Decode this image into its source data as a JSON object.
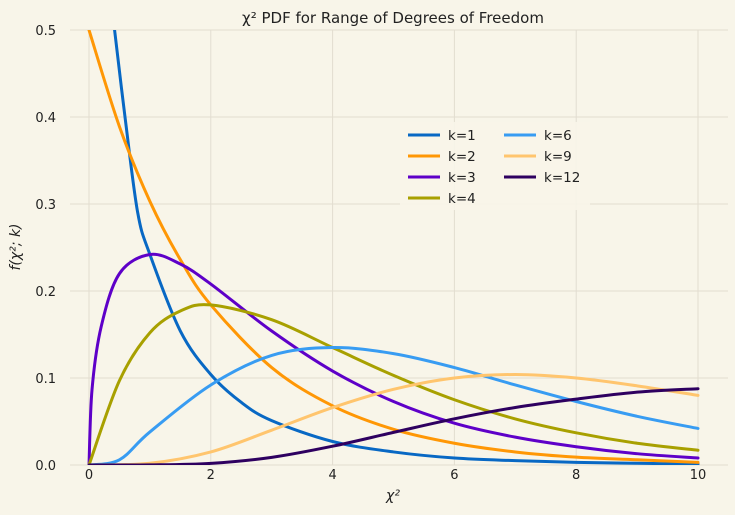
{
  "chart_data": {
    "type": "line",
    "title": "χ² PDF for Range of Degrees of Freedom",
    "xlabel": "χ²",
    "ylabel": "f(χ²; k)",
    "xlim": [
      0,
      10
    ],
    "ylim": [
      0,
      0.5
    ],
    "xticks": [
      "0",
      "2",
      "4",
      "6",
      "8",
      "10"
    ],
    "yticks": [
      "0.0",
      "0.1",
      "0.2",
      "0.3",
      "0.4",
      "0.5"
    ],
    "grid": true,
    "legend_placement": "upper-right (two columns)",
    "series": [
      {
        "name": "k=1",
        "color": "#0868c4",
        "x": [
          0.42,
          0.6,
          0.8,
          1,
          1.5,
          2,
          2.5,
          3,
          4,
          5,
          6,
          7,
          8,
          9,
          10
        ],
        "y": [
          0.5,
          0.395,
          0.29,
          0.242,
          0.154,
          0.104,
          0.072,
          0.051,
          0.027,
          0.015,
          0.008,
          0.005,
          0.003,
          0.002,
          0.001
        ]
      },
      {
        "name": "k=2",
        "color": "#ff9705",
        "x": [
          0,
          0.5,
          1,
          1.5,
          2,
          3,
          4,
          5,
          6,
          7,
          8,
          9,
          10
        ],
        "y": [
          0.5,
          0.389,
          0.303,
          0.236,
          0.184,
          0.112,
          0.068,
          0.041,
          0.025,
          0.015,
          0.009,
          0.006,
          0.003
        ]
      },
      {
        "name": "k=3",
        "color": "#5e00c8",
        "x": [
          0,
          0.05,
          0.2,
          0.5,
          1,
          1.5,
          2,
          3,
          4,
          5,
          6,
          7,
          8,
          9,
          10
        ],
        "y": [
          0,
          0.087,
          0.159,
          0.22,
          0.242,
          0.231,
          0.208,
          0.154,
          0.108,
          0.073,
          0.048,
          0.032,
          0.021,
          0.013,
          0.008
        ]
      },
      {
        "name": "k=4",
        "color": "#a8a000",
        "x": [
          0,
          0.5,
          1,
          1.5,
          2,
          3,
          4,
          5,
          6,
          7,
          8,
          9,
          10
        ],
        "y": [
          0,
          0.097,
          0.152,
          0.177,
          0.184,
          0.167,
          0.135,
          0.103,
          0.075,
          0.053,
          0.037,
          0.025,
          0.017
        ]
      },
      {
        "name": "k=6",
        "color": "#389cf2",
        "x": [
          0,
          0.5,
          1,
          2,
          3,
          4,
          5,
          6,
          7,
          8,
          9,
          10
        ],
        "y": [
          0,
          0.006,
          0.038,
          0.092,
          0.126,
          0.135,
          0.128,
          0.112,
          0.092,
          0.073,
          0.056,
          0.042
        ]
      },
      {
        "name": "k=9",
        "color": "#ffc56e",
        "x": [
          0,
          1,
          2,
          3,
          4,
          5,
          6,
          7,
          8,
          9,
          10
        ],
        "y": [
          0,
          0.002,
          0.015,
          0.04,
          0.066,
          0.087,
          0.1,
          0.104,
          0.1,
          0.091,
          0.08
        ]
      },
      {
        "name": "k=12",
        "color": "#2e0060",
        "x": [
          0,
          1,
          2,
          3,
          4,
          5,
          6,
          7,
          8,
          9,
          10
        ],
        "y": [
          0,
          0.0001,
          0.0019,
          0.0088,
          0.0216,
          0.0375,
          0.0531,
          0.0661,
          0.0757,
          0.0837,
          0.0877
        ]
      }
    ]
  }
}
